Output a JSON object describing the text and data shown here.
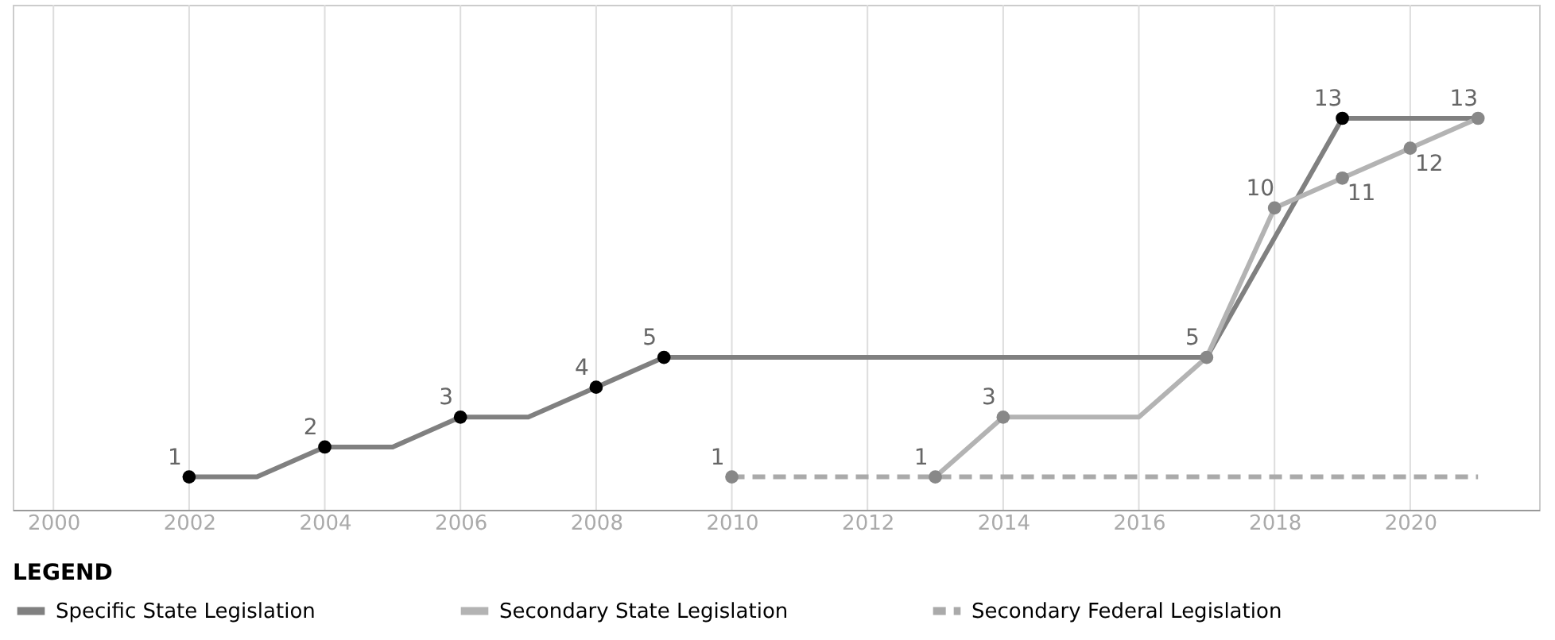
{
  "chart_data": {
    "type": "line",
    "x": [
      2002,
      2003,
      2004,
      2005,
      2006,
      2007,
      2008,
      2009,
      2017,
      2019,
      2021
    ],
    "series": [
      {
        "name": "Specific State Legislation",
        "color": "#808080",
        "line_style": "solid",
        "values": [
          1,
          1,
          2,
          2,
          3,
          3,
          4,
          5,
          5,
          13,
          13
        ],
        "value_labels": [
          "1",
          null,
          "2",
          null,
          "3",
          null,
          "4",
          "5",
          null,
          "13",
          null
        ],
        "colors": [
          "#000000",
          null,
          "#000000",
          null,
          "#000000",
          null,
          "#000000",
          "#000000",
          null,
          "#000000",
          null
        ]
      },
      {
        "name": "Secondary State Legislation",
        "color": "#b3b3b3",
        "line_style": "solid",
        "x": [
          2013,
          2014,
          2016,
          2017,
          2018,
          2019,
          2020,
          2021
        ],
        "values": [
          1,
          3,
          3,
          5,
          10,
          11,
          12,
          13
        ],
        "value_labels": [
          "1",
          "3",
          null,
          "5",
          "10",
          "11",
          "12",
          "13"
        ],
        "colors": [
          "#888888",
          "#888888",
          null,
          "#888888",
          "#888888",
          "#888888",
          "#888888",
          "#888888"
        ]
      },
      {
        "name": "Secondary Federal Legislation",
        "color": "#aaaaaa",
        "line_style": "dashed",
        "x": [
          2010,
          2021
        ],
        "values": [
          1,
          1
        ],
        "value_labels": [
          "1",
          null
        ],
        "colors": [
          "#888888",
          null
        ]
      }
    ],
    "xlim": [
      1999.4,
      2021.9
    ],
    "xticks": [
      2000,
      2002,
      2004,
      2006,
      2008,
      2010,
      2012,
      2014,
      2016,
      2018,
      2020
    ],
    "ylim": [
      -0.1,
      16.8
    ],
    "tick_labels": "x",
    "grid": "x",
    "marker": "circle",
    "legend": "bottom",
    "legend_title": "LEGEND"
  }
}
